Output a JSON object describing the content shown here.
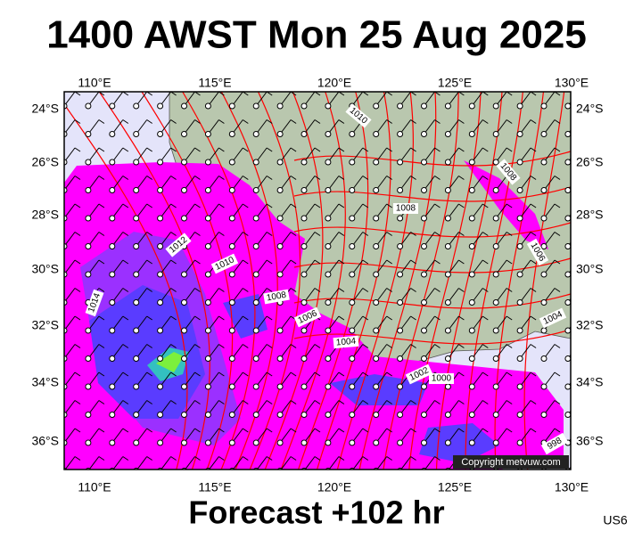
{
  "title": "1400 AWST Mon 25 Aug 2025",
  "footer": "Forecast +102 hr",
  "region_code": "US6",
  "copyright": "Copyright metvuw.com",
  "lon_labels": [
    "110°E",
    "115°E",
    "120°E",
    "125°E",
    "130°E"
  ],
  "lat_labels": [
    "24°S",
    "26°S",
    "28°S",
    "30°S",
    "32°S",
    "34°S",
    "36°S"
  ],
  "isobar_labels": [
    "1010",
    "1008",
    "1008",
    "1006",
    "1012",
    "1010",
    "1014",
    "1008",
    "1006",
    "1004",
    "1004",
    "1002",
    "1000",
    "998"
  ]
}
